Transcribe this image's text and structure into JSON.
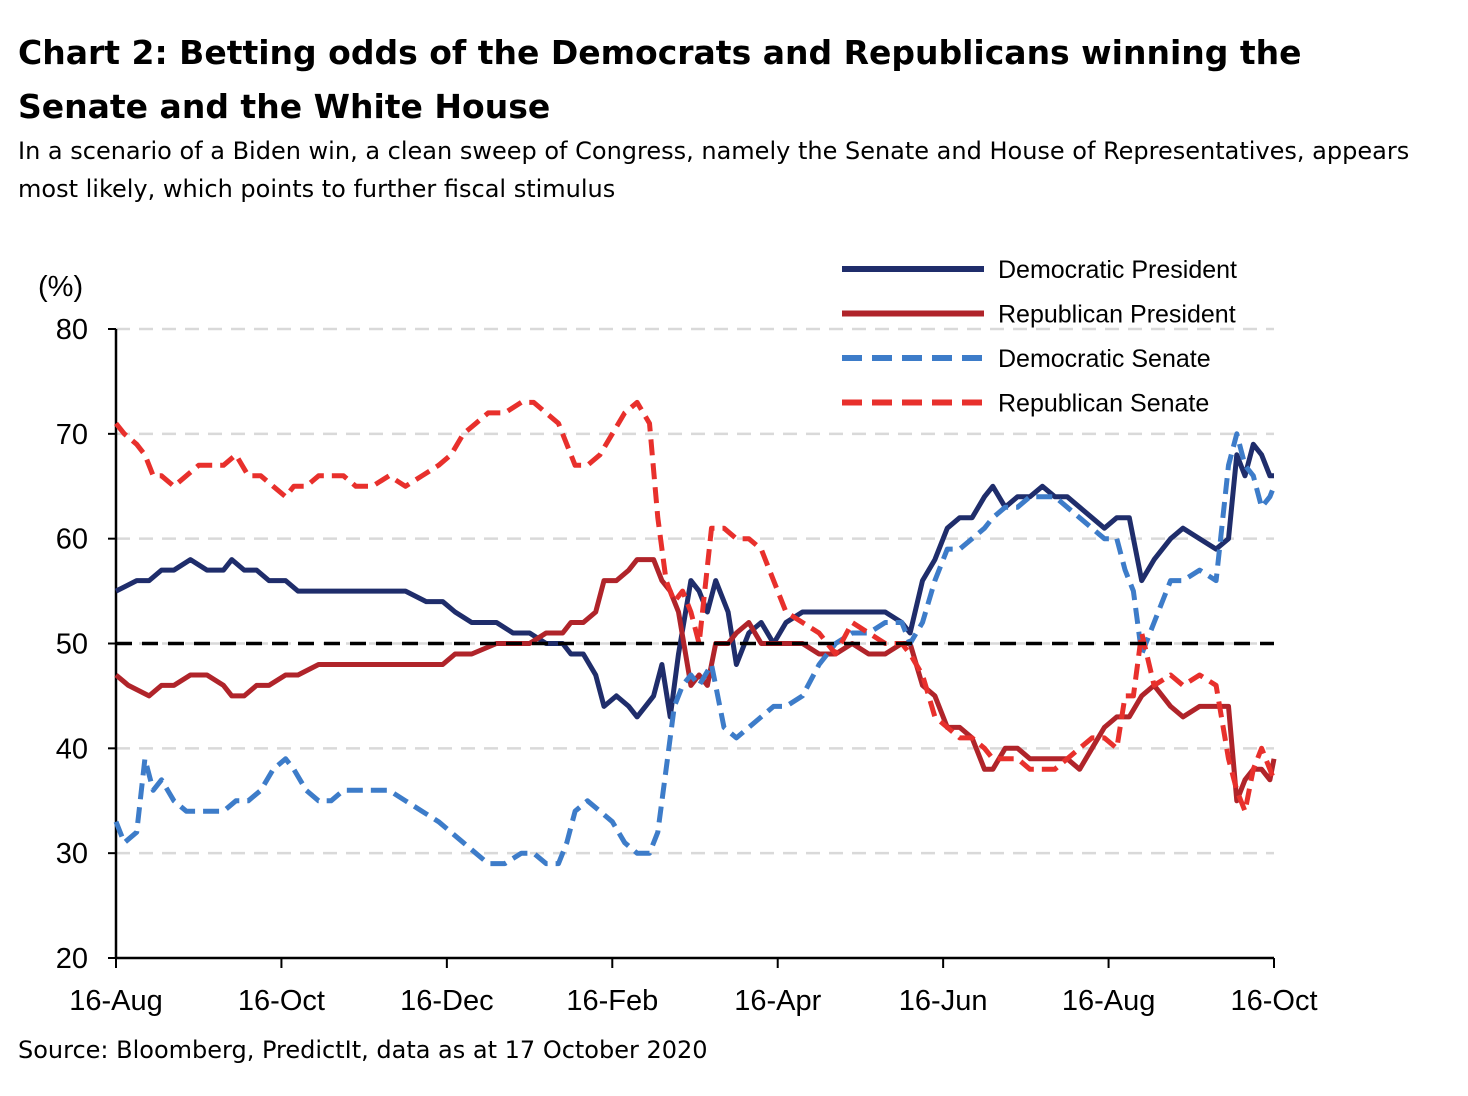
{
  "title": "Chart 2: Betting odds of the Democrats and Republicans winning the Senate and the White House",
  "subtitle": "In a scenario of a Biden win, a clean sweep of Congress, namely the Senate and House of Representatives, appears most likely, which points to further fiscal stimulus",
  "source": "Source: Bloomberg, PredictIt, data as at 17 October 2020",
  "chart_data": {
    "type": "line",
    "ylabel": "(%)",
    "ylim": [
      20,
      80
    ],
    "yticks": [
      "20",
      "30",
      "40",
      "50",
      "60",
      "70",
      "80"
    ],
    "xlim": [
      0,
      14
    ],
    "xticks": [
      {
        "x": 0,
        "label": "16-Aug"
      },
      {
        "x": 2,
        "label": "16-Oct"
      },
      {
        "x": 4,
        "label": "16-Dec"
      },
      {
        "x": 6,
        "label": "16-Feb"
      },
      {
        "x": 8,
        "label": "16-Apr"
      },
      {
        "x": 10,
        "label": "16-Jun"
      },
      {
        "x": 12,
        "label": "16-Aug"
      },
      {
        "x": 14,
        "label": "16-Oct"
      }
    ],
    "grid": true,
    "reference_line": 50,
    "legend_position": "top-right",
    "series": [
      {
        "name": "Democratic President",
        "color": "#1f2d6b",
        "dash": false,
        "x": [
          0,
          0.25,
          0.4,
          0.55,
          0.7,
          0.9,
          1.1,
          1.3,
          1.4,
          1.55,
          1.7,
          1.85,
          2.05,
          2.2,
          2.45,
          2.7,
          3.0,
          3.2,
          3.5,
          3.75,
          3.95,
          4.1,
          4.3,
          4.6,
          4.8,
          5.0,
          5.2,
          5.4,
          5.5,
          5.65,
          5.8,
          5.9,
          6.05,
          6.2,
          6.3,
          6.4,
          6.5,
          6.6,
          6.7,
          6.8,
          6.95,
          7.05,
          7.15,
          7.25,
          7.4,
          7.5,
          7.65,
          7.8,
          7.95,
          8.1,
          8.3,
          8.5,
          8.7,
          8.9,
          9.1,
          9.3,
          9.5,
          9.6,
          9.75,
          9.9,
          10.05,
          10.2,
          10.35,
          10.5,
          10.6,
          10.75,
          10.9,
          11.05,
          11.2,
          11.35,
          11.5,
          11.65,
          11.8,
          11.95,
          12.1,
          12.25,
          12.4,
          12.55,
          12.75,
          12.9,
          13.1,
          13.3,
          13.45,
          13.55,
          13.65,
          13.75,
          13.85,
          13.95,
          14.0
        ],
        "y": [
          55,
          56,
          56,
          57,
          57,
          58,
          57,
          57,
          58,
          57,
          57,
          56,
          56,
          55,
          55,
          55,
          55,
          55,
          55,
          54,
          54,
          53,
          52,
          52,
          51,
          51,
          50,
          50,
          49,
          49,
          47,
          44,
          45,
          44,
          43,
          44,
          45,
          48,
          43,
          49,
          56,
          55,
          53,
          56,
          53,
          48,
          51,
          52,
          50,
          52,
          53,
          53,
          53,
          53,
          53,
          53,
          52,
          51,
          56,
          58,
          61,
          62,
          62,
          64,
          65,
          63,
          64,
          64,
          65,
          64,
          64,
          63,
          62,
          61,
          62,
          62,
          56,
          58,
          60,
          61,
          60,
          59,
          60,
          68,
          66,
          69,
          68,
          66,
          66
        ]
      },
      {
        "name": "Republican President",
        "color": "#b0242a",
        "dash": false,
        "x": [
          0,
          0.15,
          0.4,
          0.55,
          0.7,
          0.9,
          1.1,
          1.3,
          1.4,
          1.55,
          1.7,
          1.85,
          2.05,
          2.2,
          2.45,
          2.7,
          3.0,
          3.2,
          3.5,
          3.75,
          3.95,
          4.1,
          4.3,
          4.6,
          4.8,
          5.0,
          5.2,
          5.4,
          5.5,
          5.65,
          5.8,
          5.9,
          6.05,
          6.2,
          6.3,
          6.4,
          6.5,
          6.6,
          6.7,
          6.8,
          6.95,
          7.05,
          7.15,
          7.25,
          7.4,
          7.5,
          7.65,
          7.8,
          7.95,
          8.1,
          8.3,
          8.5,
          8.7,
          8.9,
          9.1,
          9.3,
          9.5,
          9.6,
          9.75,
          9.9,
          10.05,
          10.2,
          10.35,
          10.5,
          10.6,
          10.75,
          10.9,
          11.05,
          11.2,
          11.35,
          11.5,
          11.65,
          11.8,
          11.95,
          12.1,
          12.25,
          12.4,
          12.55,
          12.75,
          12.9,
          13.1,
          13.3,
          13.45,
          13.55,
          13.65,
          13.75,
          13.85,
          13.95,
          14.0
        ],
        "y": [
          47,
          46,
          45,
          46,
          46,
          47,
          47,
          46,
          45,
          45,
          46,
          46,
          47,
          47,
          48,
          48,
          48,
          48,
          48,
          48,
          48,
          49,
          49,
          50,
          50,
          50,
          51,
          51,
          52,
          52,
          53,
          56,
          56,
          57,
          58,
          58,
          58,
          56,
          55,
          53,
          46,
          47,
          46,
          50,
          50,
          51,
          52,
          50,
          50,
          50,
          50,
          49,
          49,
          50,
          49,
          49,
          50,
          50,
          46,
          45,
          42,
          42,
          41,
          38,
          38,
          40,
          40,
          39,
          39,
          39,
          39,
          38,
          40,
          42,
          43,
          43,
          45,
          46,
          44,
          43,
          44,
          44,
          44,
          35,
          37,
          38,
          38,
          37,
          39
        ]
      },
      {
        "name": "Democratic Senate",
        "color": "#3d7cc9",
        "dash": true,
        "x": [
          0,
          0.1,
          0.25,
          0.35,
          0.45,
          0.55,
          0.7,
          0.85,
          1.0,
          1.15,
          1.3,
          1.45,
          1.6,
          1.75,
          1.9,
          2.05,
          2.15,
          2.3,
          2.45,
          2.6,
          2.75,
          2.9,
          3.1,
          3.3,
          3.5,
          3.7,
          3.9,
          4.05,
          4.2,
          4.35,
          4.5,
          4.7,
          4.9,
          5.05,
          5.2,
          5.35,
          5.45,
          5.55,
          5.7,
          5.85,
          6.0,
          6.15,
          6.3,
          6.45,
          6.55,
          6.65,
          6.75,
          6.85,
          6.95,
          7.05,
          7.2,
          7.35,
          7.5,
          7.65,
          7.8,
          7.95,
          8.1,
          8.3,
          8.5,
          8.7,
          8.9,
          9.1,
          9.3,
          9.5,
          9.6,
          9.75,
          9.9,
          10.05,
          10.2,
          10.35,
          10.5,
          10.6,
          10.75,
          10.9,
          11.05,
          11.2,
          11.35,
          11.5,
          11.65,
          11.8,
          11.95,
          12.1,
          12.2,
          12.3,
          12.4,
          12.55,
          12.75,
          12.9,
          13.1,
          13.3,
          13.45,
          13.55,
          13.65,
          13.75,
          13.85,
          13.95,
          14.0
        ],
        "y": [
          33,
          31,
          32,
          39,
          36,
          37,
          35,
          34,
          34,
          34,
          34,
          35,
          35,
          36,
          38,
          39,
          38,
          36,
          35,
          35,
          36,
          36,
          36,
          36,
          35,
          34,
          33,
          32,
          31,
          30,
          29,
          29,
          30,
          30,
          29,
          29,
          31,
          34,
          35,
          34,
          33,
          31,
          30,
          30,
          32,
          38,
          44,
          46,
          47,
          46,
          48,
          42,
          41,
          42,
          43,
          44,
          44,
          45,
          48,
          50,
          51,
          51,
          52,
          52,
          50,
          52,
          56,
          59,
          59,
          60,
          61,
          62,
          63,
          63,
          64,
          64,
          64,
          63,
          62,
          61,
          60,
          60,
          57,
          55,
          49,
          52,
          56,
          56,
          57,
          56,
          67,
          70,
          67,
          66,
          63,
          64,
          65
        ]
      },
      {
        "name": "Republican Senate",
        "color": "#e8302c",
        "dash": true,
        "x": [
          0,
          0.1,
          0.25,
          0.35,
          0.45,
          0.55,
          0.7,
          0.85,
          1.0,
          1.15,
          1.3,
          1.45,
          1.6,
          1.75,
          1.9,
          2.05,
          2.15,
          2.3,
          2.45,
          2.6,
          2.75,
          2.9,
          3.1,
          3.3,
          3.5,
          3.7,
          3.9,
          4.05,
          4.2,
          4.35,
          4.5,
          4.7,
          4.9,
          5.05,
          5.2,
          5.35,
          5.45,
          5.55,
          5.7,
          5.85,
          6.0,
          6.15,
          6.3,
          6.45,
          6.55,
          6.65,
          6.75,
          6.85,
          6.95,
          7.05,
          7.2,
          7.35,
          7.5,
          7.65,
          7.8,
          7.95,
          8.1,
          8.3,
          8.5,
          8.7,
          8.9,
          9.1,
          9.3,
          9.5,
          9.6,
          9.75,
          9.9,
          10.05,
          10.2,
          10.35,
          10.5,
          10.6,
          10.75,
          10.9,
          11.05,
          11.2,
          11.35,
          11.5,
          11.65,
          11.8,
          11.95,
          12.1,
          12.2,
          12.3,
          12.4,
          12.55,
          12.75,
          12.9,
          13.1,
          13.3,
          13.45,
          13.55,
          13.65,
          13.75,
          13.85,
          13.95,
          14.0
        ],
        "y": [
          71,
          70,
          69,
          68,
          66,
          66,
          65,
          66,
          67,
          67,
          67,
          68,
          66,
          66,
          65,
          64,
          65,
          65,
          66,
          66,
          66,
          65,
          65,
          66,
          65,
          66,
          67,
          68,
          70,
          71,
          72,
          72,
          73,
          73,
          72,
          71,
          69,
          67,
          67,
          68,
          70,
          72,
          73,
          71,
          62,
          56,
          54,
          55,
          53,
          50,
          61,
          61,
          60,
          60,
          59,
          56,
          53,
          52,
          51,
          49,
          52,
          51,
          50,
          50,
          49,
          47,
          43,
          42,
          41,
          41,
          40,
          39,
          39,
          39,
          38,
          38,
          38,
          39,
          40,
          41,
          41,
          40,
          45,
          45,
          51,
          46,
          47,
          46,
          47,
          46,
          39,
          36,
          34,
          38,
          40,
          38,
          37
        ]
      },
      {
        "name": "",
        "color": "#000000",
        "dash": true,
        "x": [
          0,
          14
        ],
        "y": [
          50,
          50
        ]
      }
    ]
  }
}
